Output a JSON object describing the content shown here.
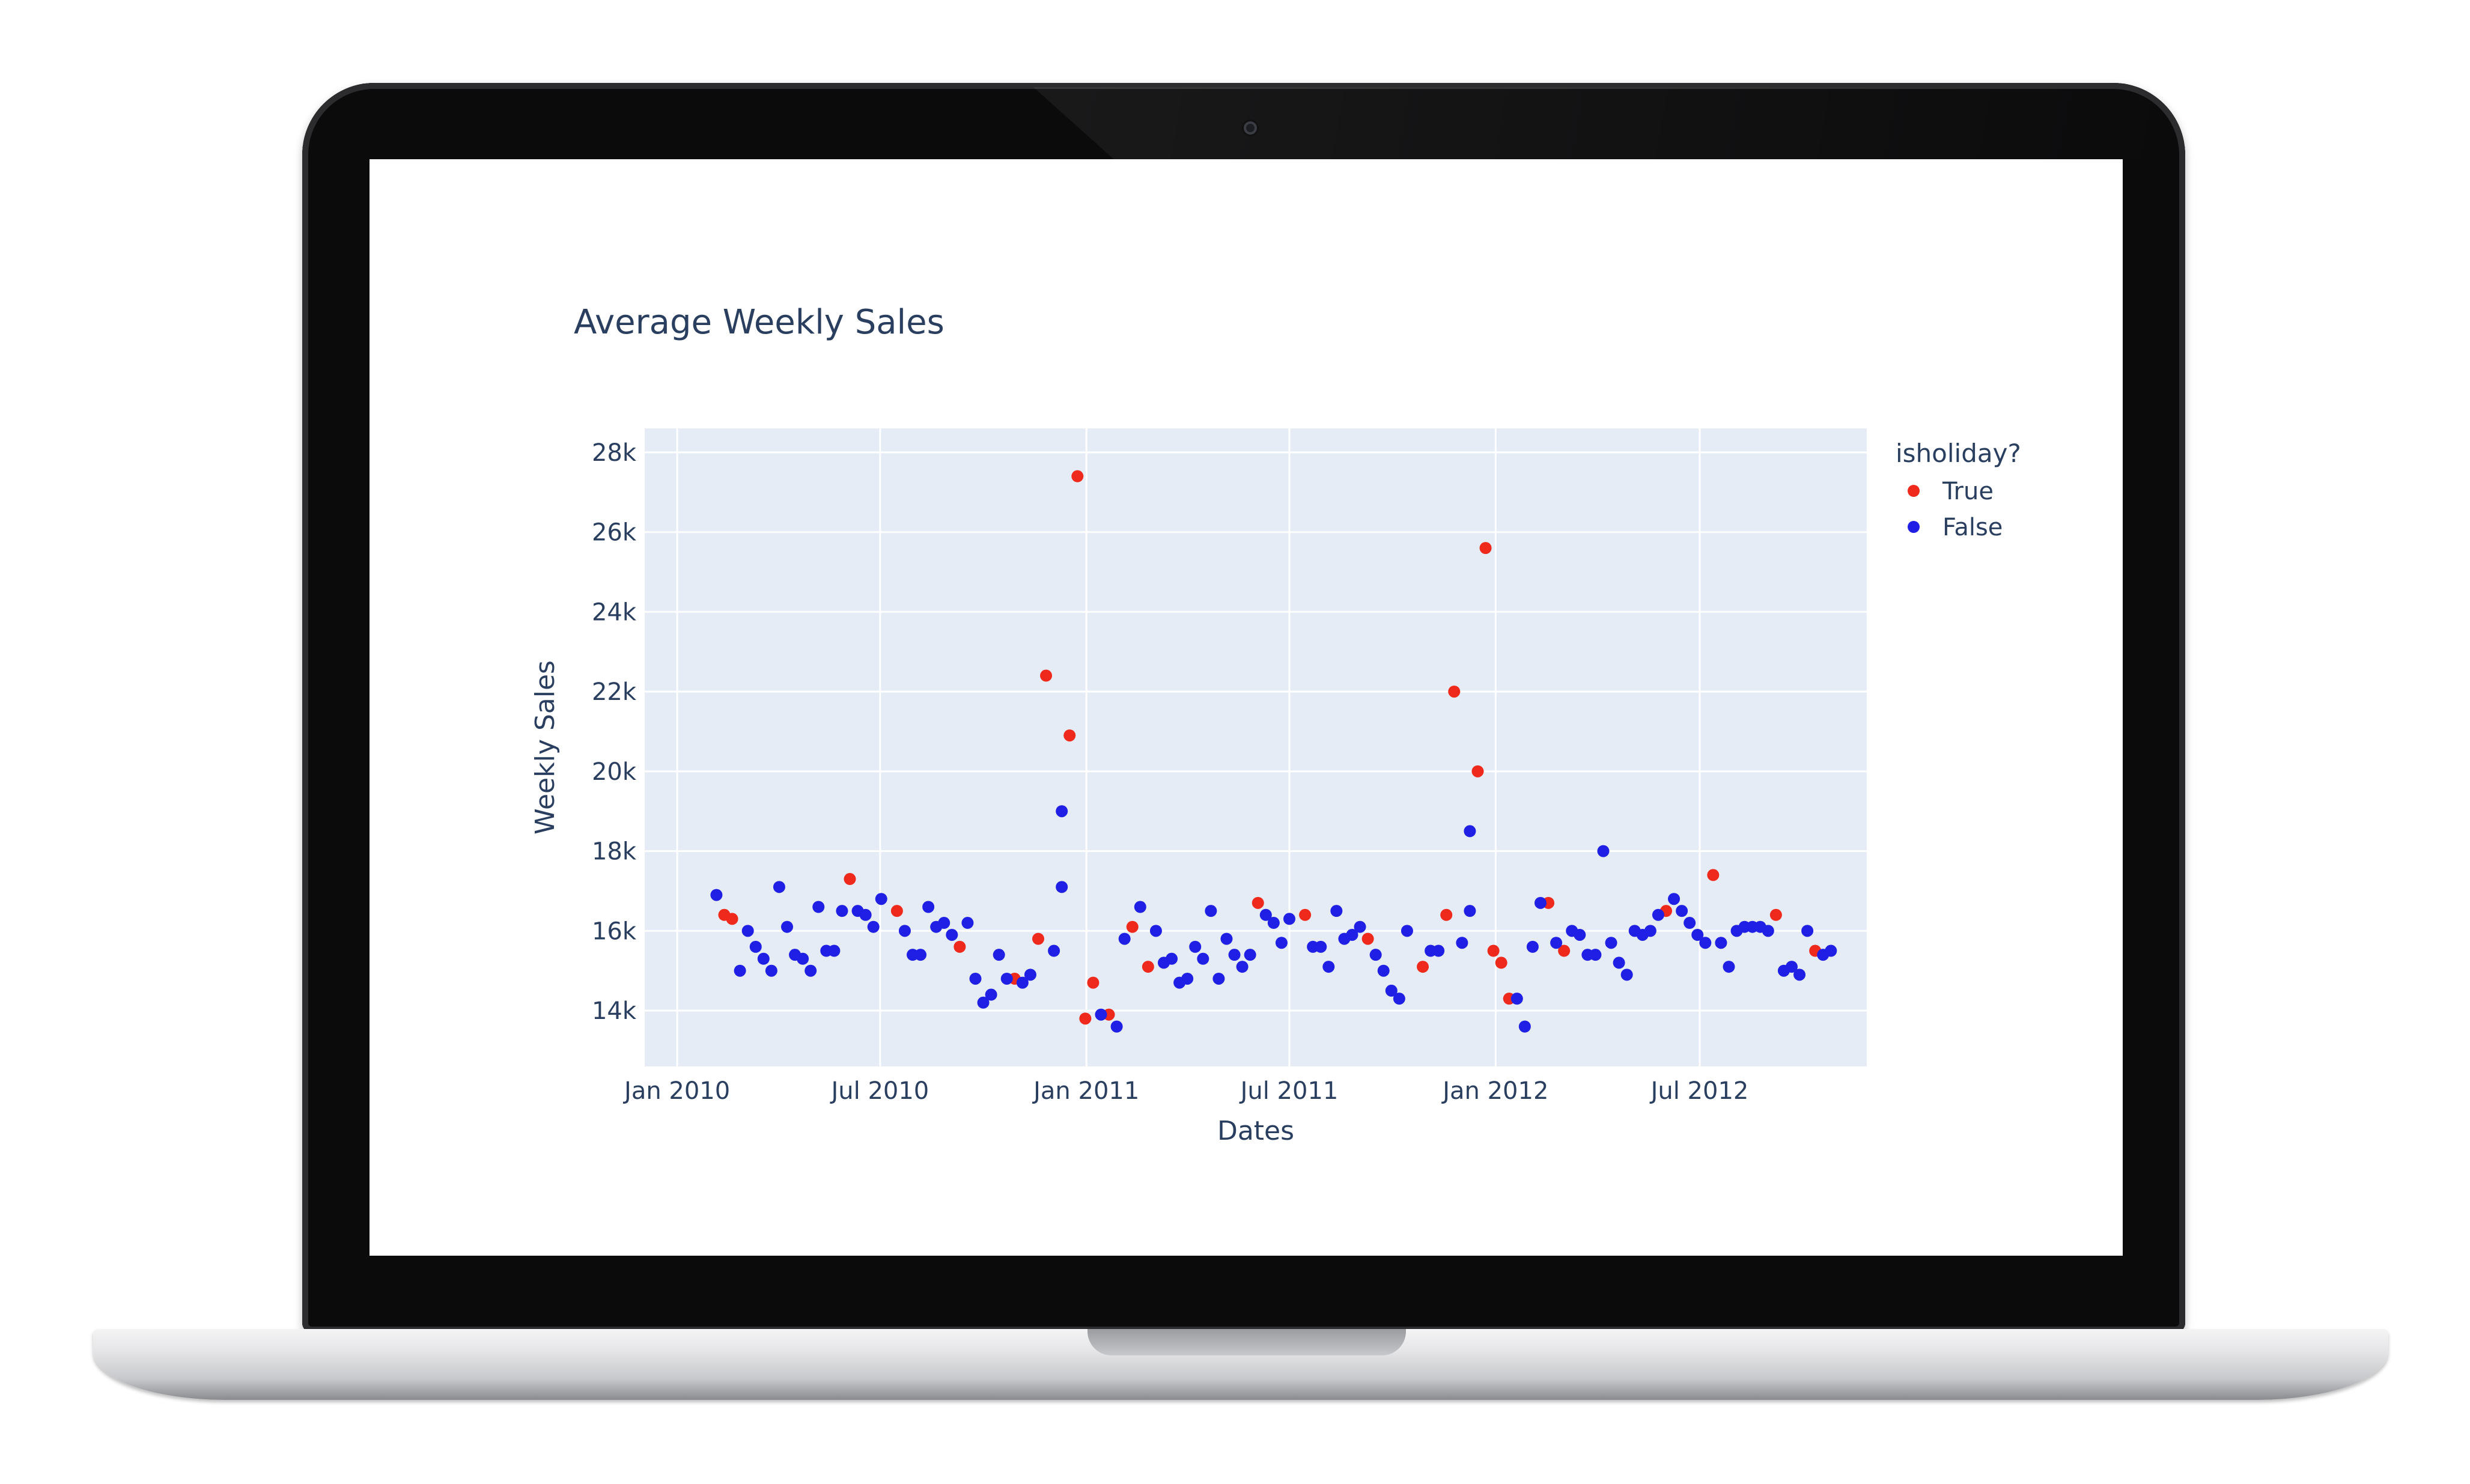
{
  "chart_data": {
    "type": "scatter",
    "title": "Average Weekly Sales",
    "xlabel": "Dates",
    "ylabel": "Weekly Sales",
    "xlim": [
      "2009-12-03",
      "2012-11-27"
    ],
    "ylim": [
      12600,
      28600
    ],
    "grid": true,
    "legend_title": "isholiday?",
    "legend_position": "top-right",
    "x_ticks": [
      {
        "value": "2010-01-01",
        "label": "Jan 2010"
      },
      {
        "value": "2010-07-01",
        "label": "Jul 2010"
      },
      {
        "value": "2011-01-01",
        "label": "Jan 2011"
      },
      {
        "value": "2011-07-01",
        "label": "Jul 2011"
      },
      {
        "value": "2012-01-01",
        "label": "Jan 2012"
      },
      {
        "value": "2012-07-01",
        "label": "Jul 2012"
      }
    ],
    "y_ticks": [
      {
        "value": 14000,
        "label": "14k"
      },
      {
        "value": 16000,
        "label": "16k"
      },
      {
        "value": 18000,
        "label": "18k"
      },
      {
        "value": 20000,
        "label": "20k"
      },
      {
        "value": 22000,
        "label": "22k"
      },
      {
        "value": 24000,
        "label": "24k"
      },
      {
        "value": 26000,
        "label": "26k"
      },
      {
        "value": 28000,
        "label": "28k"
      }
    ],
    "series": [
      {
        "name": "True",
        "color": "#ef2a1c",
        "points": [
          {
            "x": "2010-02-12",
            "y": 16400
          },
          {
            "x": "2010-02-19",
            "y": 16300
          },
          {
            "x": "2010-06-04",
            "y": 17300
          },
          {
            "x": "2010-07-16",
            "y": 16500
          },
          {
            "x": "2010-09-10",
            "y": 15600
          },
          {
            "x": "2010-10-29",
            "y": 14800
          },
          {
            "x": "2010-11-19",
            "y": 15800
          },
          {
            "x": "2010-11-26",
            "y": 22400
          },
          {
            "x": "2010-12-17",
            "y": 20900
          },
          {
            "x": "2010-12-24",
            "y": 27400
          },
          {
            "x": "2010-12-31",
            "y": 13800
          },
          {
            "x": "2011-01-07",
            "y": 14700
          },
          {
            "x": "2011-01-21",
            "y": 13900
          },
          {
            "x": "2011-02-11",
            "y": 16100
          },
          {
            "x": "2011-02-25",
            "y": 15100
          },
          {
            "x": "2011-06-03",
            "y": 16700
          },
          {
            "x": "2011-07-15",
            "y": 16400
          },
          {
            "x": "2011-09-09",
            "y": 15800
          },
          {
            "x": "2011-10-28",
            "y": 15100
          },
          {
            "x": "2011-11-18",
            "y": 16400
          },
          {
            "x": "2011-11-25",
            "y": 22000
          },
          {
            "x": "2011-12-16",
            "y": 20000
          },
          {
            "x": "2011-12-23",
            "y": 25600
          },
          {
            "x": "2011-12-30",
            "y": 15500
          },
          {
            "x": "2012-01-06",
            "y": 15200
          },
          {
            "x": "2012-01-13",
            "y": 14300
          },
          {
            "x": "2012-02-17",
            "y": 16700
          },
          {
            "x": "2012-03-02",
            "y": 15500
          },
          {
            "x": "2012-06-01",
            "y": 16500
          },
          {
            "x": "2012-07-13",
            "y": 17400
          },
          {
            "x": "2012-09-07",
            "y": 16400
          },
          {
            "x": "2012-10-12",
            "y": 15500
          }
        ]
      },
      {
        "name": "False",
        "color": "#1f1fe6",
        "points": [
          {
            "x": "2010-02-05",
            "y": 16900
          },
          {
            "x": "2010-02-26",
            "y": 15000
          },
          {
            "x": "2010-03-05",
            "y": 16000
          },
          {
            "x": "2010-03-12",
            "y": 15600
          },
          {
            "x": "2010-03-19",
            "y": 15300
          },
          {
            "x": "2010-03-26",
            "y": 15000
          },
          {
            "x": "2010-04-02",
            "y": 17100
          },
          {
            "x": "2010-04-09",
            "y": 16100
          },
          {
            "x": "2010-04-16",
            "y": 15400
          },
          {
            "x": "2010-04-23",
            "y": 15300
          },
          {
            "x": "2010-04-30",
            "y": 15000
          },
          {
            "x": "2010-05-07",
            "y": 16600
          },
          {
            "x": "2010-05-14",
            "y": 15500
          },
          {
            "x": "2010-05-21",
            "y": 15500
          },
          {
            "x": "2010-05-28",
            "y": 16500
          },
          {
            "x": "2010-06-11",
            "y": 16500
          },
          {
            "x": "2010-06-18",
            "y": 16400
          },
          {
            "x": "2010-06-25",
            "y": 16100
          },
          {
            "x": "2010-07-02",
            "y": 16800
          },
          {
            "x": "2010-07-23",
            "y": 16000
          },
          {
            "x": "2010-07-30",
            "y": 15400
          },
          {
            "x": "2010-08-06",
            "y": 15400
          },
          {
            "x": "2010-08-13",
            "y": 16600
          },
          {
            "x": "2010-08-20",
            "y": 16100
          },
          {
            "x": "2010-08-27",
            "y": 16200
          },
          {
            "x": "2010-09-03",
            "y": 15900
          },
          {
            "x": "2010-09-17",
            "y": 16200
          },
          {
            "x": "2010-09-24",
            "y": 14800
          },
          {
            "x": "2010-10-01",
            "y": 14200
          },
          {
            "x": "2010-10-08",
            "y": 14400
          },
          {
            "x": "2010-10-15",
            "y": 15400
          },
          {
            "x": "2010-10-22",
            "y": 14800
          },
          {
            "x": "2010-11-05",
            "y": 14700
          },
          {
            "x": "2010-11-12",
            "y": 14900
          },
          {
            "x": "2010-12-03",
            "y": 15500
          },
          {
            "x": "2010-12-10",
            "y": 19000
          },
          {
            "x": "2010-12-10",
            "y": 17100
          },
          {
            "x": "2011-01-14",
            "y": 13900
          },
          {
            "x": "2011-01-28",
            "y": 13600
          },
          {
            "x": "2011-02-04",
            "y": 15800
          },
          {
            "x": "2011-02-18",
            "y": 16600
          },
          {
            "x": "2011-03-04",
            "y": 16000
          },
          {
            "x": "2011-03-11",
            "y": 15200
          },
          {
            "x": "2011-03-18",
            "y": 15300
          },
          {
            "x": "2011-03-25",
            "y": 14700
          },
          {
            "x": "2011-04-01",
            "y": 14800
          },
          {
            "x": "2011-04-08",
            "y": 15600
          },
          {
            "x": "2011-04-15",
            "y": 15300
          },
          {
            "x": "2011-04-22",
            "y": 16500
          },
          {
            "x": "2011-04-29",
            "y": 14800
          },
          {
            "x": "2011-05-06",
            "y": 15800
          },
          {
            "x": "2011-05-13",
            "y": 15400
          },
          {
            "x": "2011-05-20",
            "y": 15100
          },
          {
            "x": "2011-05-27",
            "y": 15400
          },
          {
            "x": "2011-06-10",
            "y": 16400
          },
          {
            "x": "2011-06-17",
            "y": 16200
          },
          {
            "x": "2011-06-24",
            "y": 15700
          },
          {
            "x": "2011-07-01",
            "y": 16300
          },
          {
            "x": "2011-07-22",
            "y": 15600
          },
          {
            "x": "2011-07-29",
            "y": 15600
          },
          {
            "x": "2011-08-05",
            "y": 15100
          },
          {
            "x": "2011-08-12",
            "y": 16500
          },
          {
            "x": "2011-08-19",
            "y": 15800
          },
          {
            "x": "2011-08-26",
            "y": 15900
          },
          {
            "x": "2011-09-02",
            "y": 16100
          },
          {
            "x": "2011-09-16",
            "y": 15400
          },
          {
            "x": "2011-09-23",
            "y": 15000
          },
          {
            "x": "2011-09-30",
            "y": 14500
          },
          {
            "x": "2011-10-07",
            "y": 14300
          },
          {
            "x": "2011-10-14",
            "y": 16000
          },
          {
            "x": "2011-11-04",
            "y": 15500
          },
          {
            "x": "2011-11-11",
            "y": 15500
          },
          {
            "x": "2011-12-02",
            "y": 15700
          },
          {
            "x": "2011-12-09",
            "y": 16500
          },
          {
            "x": "2011-12-09",
            "y": 18500
          },
          {
            "x": "2012-01-20",
            "y": 14300
          },
          {
            "x": "2012-01-27",
            "y": 13600
          },
          {
            "x": "2012-02-03",
            "y": 15600
          },
          {
            "x": "2012-02-10",
            "y": 16700
          },
          {
            "x": "2012-02-24",
            "y": 15700
          },
          {
            "x": "2012-03-09",
            "y": 16000
          },
          {
            "x": "2012-03-16",
            "y": 15900
          },
          {
            "x": "2012-03-23",
            "y": 15400
          },
          {
            "x": "2012-03-30",
            "y": 15400
          },
          {
            "x": "2012-04-06",
            "y": 18000
          },
          {
            "x": "2012-04-13",
            "y": 15700
          },
          {
            "x": "2012-04-20",
            "y": 15200
          },
          {
            "x": "2012-04-27",
            "y": 14900
          },
          {
            "x": "2012-05-04",
            "y": 16000
          },
          {
            "x": "2012-05-11",
            "y": 15900
          },
          {
            "x": "2012-05-18",
            "y": 16000
          },
          {
            "x": "2012-05-25",
            "y": 16400
          },
          {
            "x": "2012-06-08",
            "y": 16800
          },
          {
            "x": "2012-06-15",
            "y": 16500
          },
          {
            "x": "2012-06-22",
            "y": 16200
          },
          {
            "x": "2012-06-29",
            "y": 15900
          },
          {
            "x": "2012-07-06",
            "y": 15700
          },
          {
            "x": "2012-07-20",
            "y": 15700
          },
          {
            "x": "2012-07-27",
            "y": 15100
          },
          {
            "x": "2012-08-03",
            "y": 16000
          },
          {
            "x": "2012-08-10",
            "y": 16100
          },
          {
            "x": "2012-08-17",
            "y": 16100
          },
          {
            "x": "2012-08-24",
            "y": 16100
          },
          {
            "x": "2012-08-31",
            "y": 16000
          },
          {
            "x": "2012-09-14",
            "y": 15000
          },
          {
            "x": "2012-09-21",
            "y": 15100
          },
          {
            "x": "2012-09-28",
            "y": 14900
          },
          {
            "x": "2012-10-05",
            "y": 16000
          },
          {
            "x": "2012-10-19",
            "y": 15400
          },
          {
            "x": "2012-10-26",
            "y": 15500
          }
        ]
      }
    ]
  }
}
